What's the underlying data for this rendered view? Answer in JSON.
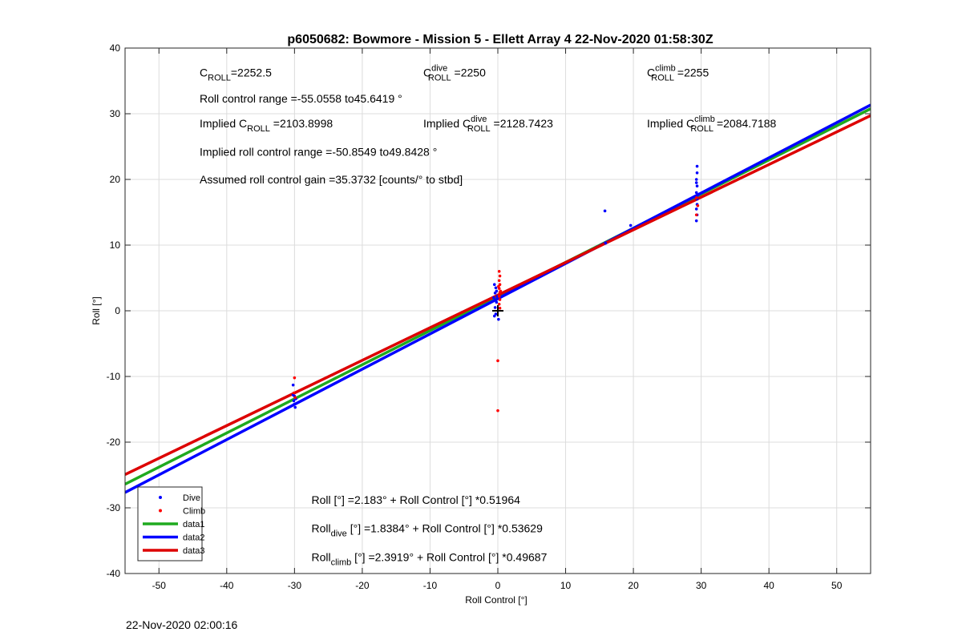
{
  "chart_data": {
    "type": "scatter",
    "title": "p6050682: Bowmore - Mission 5 - Ellett Array 4 22-Nov-2020 01:58:30Z",
    "xlabel": "Roll Control [°]",
    "ylabel": "Roll [°]",
    "xlim": [
      -55,
      55
    ],
    "ylim": [
      -40,
      40
    ],
    "xticks": [
      -50,
      -40,
      -30,
      -20,
      -10,
      0,
      10,
      20,
      30,
      40,
      50
    ],
    "yticks": [
      -40,
      -30,
      -20,
      -10,
      0,
      10,
      20,
      30,
      40
    ],
    "grid": true,
    "legend_position": "bottom-left",
    "series": [
      {
        "name": "Dive",
        "kind": "points",
        "color": "#0000ff",
        "points": [
          [
            -30.2,
            -11.3
          ],
          [
            -30.0,
            -13.0
          ],
          [
            -30.1,
            -13.7
          ],
          [
            -30.0,
            -14.2
          ],
          [
            -29.9,
            -14.7
          ],
          [
            -30.2,
            -12.8
          ],
          [
            -29.8,
            -13.4
          ],
          [
            -0.5,
            4.0
          ],
          [
            -0.3,
            3.5
          ],
          [
            -0.4,
            2.7
          ],
          [
            -0.6,
            2.0
          ],
          [
            -0.2,
            1.3
          ],
          [
            -0.4,
            0.5
          ],
          [
            -0.3,
            -0.5
          ],
          [
            0.1,
            -1.3
          ],
          [
            -0.5,
            -0.8
          ],
          [
            -0.2,
            3.0
          ],
          [
            -0.1,
            2.2
          ],
          [
            15.8,
            15.2
          ],
          [
            19.6,
            13.0
          ],
          [
            15.9,
            10.3
          ],
          [
            29.4,
            22.0
          ],
          [
            29.4,
            21.0
          ],
          [
            29.3,
            20.0
          ],
          [
            29.4,
            19.0
          ],
          [
            29.3,
            18.0
          ],
          [
            29.4,
            17.0
          ],
          [
            29.4,
            16.2
          ],
          [
            29.3,
            15.5
          ],
          [
            29.4,
            14.6
          ],
          [
            29.3,
            13.7
          ],
          [
            29.5,
            17.6
          ],
          [
            29.3,
            19.5
          ]
        ]
      },
      {
        "name": "Climb",
        "kind": "points",
        "color": "#ff0000",
        "points": [
          [
            -30.0,
            -10.2
          ],
          [
            -30.1,
            -12.5
          ],
          [
            -29.9,
            -13.2
          ],
          [
            0.0,
            -7.6
          ],
          [
            0.0,
            -15.2
          ],
          [
            0.2,
            6.0
          ],
          [
            0.3,
            5.3
          ],
          [
            0.2,
            4.6
          ],
          [
            0.3,
            4.0
          ],
          [
            0.2,
            3.4
          ],
          [
            0.3,
            2.8
          ],
          [
            0.2,
            2.2
          ],
          [
            0.3,
            1.7
          ],
          [
            0.2,
            1.0
          ],
          [
            0.3,
            0.4
          ],
          [
            0.4,
            3.0
          ],
          [
            0.1,
            3.7
          ],
          [
            29.3,
            14.6
          ],
          [
            29.5,
            16.0
          ],
          [
            29.3,
            17.2
          ]
        ]
      },
      {
        "name": "data1",
        "kind": "line",
        "color": "#1faa1f",
        "intercept": 2.183,
        "slope": 0.51964
      },
      {
        "name": "data2",
        "kind": "line",
        "color": "#0000ff",
        "intercept": 1.8384,
        "slope": 0.53629
      },
      {
        "name": "data3",
        "kind": "line",
        "color": "#dd0000",
        "intercept": 2.3919,
        "slope": 0.49687
      }
    ],
    "marker": {
      "x": 0,
      "y": 0,
      "symbol": "+"
    },
    "annotations": [
      {
        "base": "C",
        "sub": "ROLL",
        "sup": "",
        "rest": "=2252.5",
        "x": -44,
        "y": 35.7
      },
      {
        "base": "C",
        "sub": "ROLL",
        "sup": "dive",
        "rest": " =2250",
        "x": -11,
        "y": 35.7
      },
      {
        "base": "C",
        "sub": "ROLL",
        "sup": "climb",
        "rest": " =2255",
        "x": 22,
        "y": 35.7
      },
      {
        "base": "Roll control range =-55.0558 to45.6419 °",
        "sub": "",
        "sup": "",
        "rest": "",
        "x": -44,
        "y": 31.7
      },
      {
        "base": "Implied C",
        "sub": "ROLL",
        "sup": "",
        "rest": " =2103.8998",
        "x": -44,
        "y": 27.9
      },
      {
        "base": "Implied C",
        "sub": "ROLL",
        "sup": "dive",
        "rest": " =2128.7423",
        "x": -11,
        "y": 27.9
      },
      {
        "base": "Implied C",
        "sub": "ROLL",
        "sup": "climb",
        "rest": " =2084.7188",
        "x": 22,
        "y": 27.9
      },
      {
        "base": "Implied roll control range =-50.8549 to49.8428 °",
        "sub": "",
        "sup": "",
        "rest": "",
        "x": -44,
        "y": 23.6
      },
      {
        "base": "Assumed roll control gain =35.3732 [counts/° to stbd]",
        "sub": "",
        "sup": "",
        "rest": "",
        "x": -44,
        "y": 19.4
      },
      {
        "base": "Roll [°] =2.183° + Roll Control [°] *0.51964",
        "sub": "",
        "sup": "",
        "rest": "",
        "x": -27.5,
        "y": -29.4
      },
      {
        "base": "Roll",
        "sub": "dive",
        "sup": "",
        "rest": " [°] =1.8384° + Roll Control [°] *0.53629",
        "x": -27.5,
        "y": -33.7
      },
      {
        "base": "Roll",
        "sub": "climb",
        "sup": "",
        "rest": " [°] =2.3919° + Roll Control [°] *0.49687",
        "x": -27.5,
        "y": -38.1
      }
    ]
  },
  "footer": {
    "timestamp": "22-Nov-2020 02:00:16"
  }
}
